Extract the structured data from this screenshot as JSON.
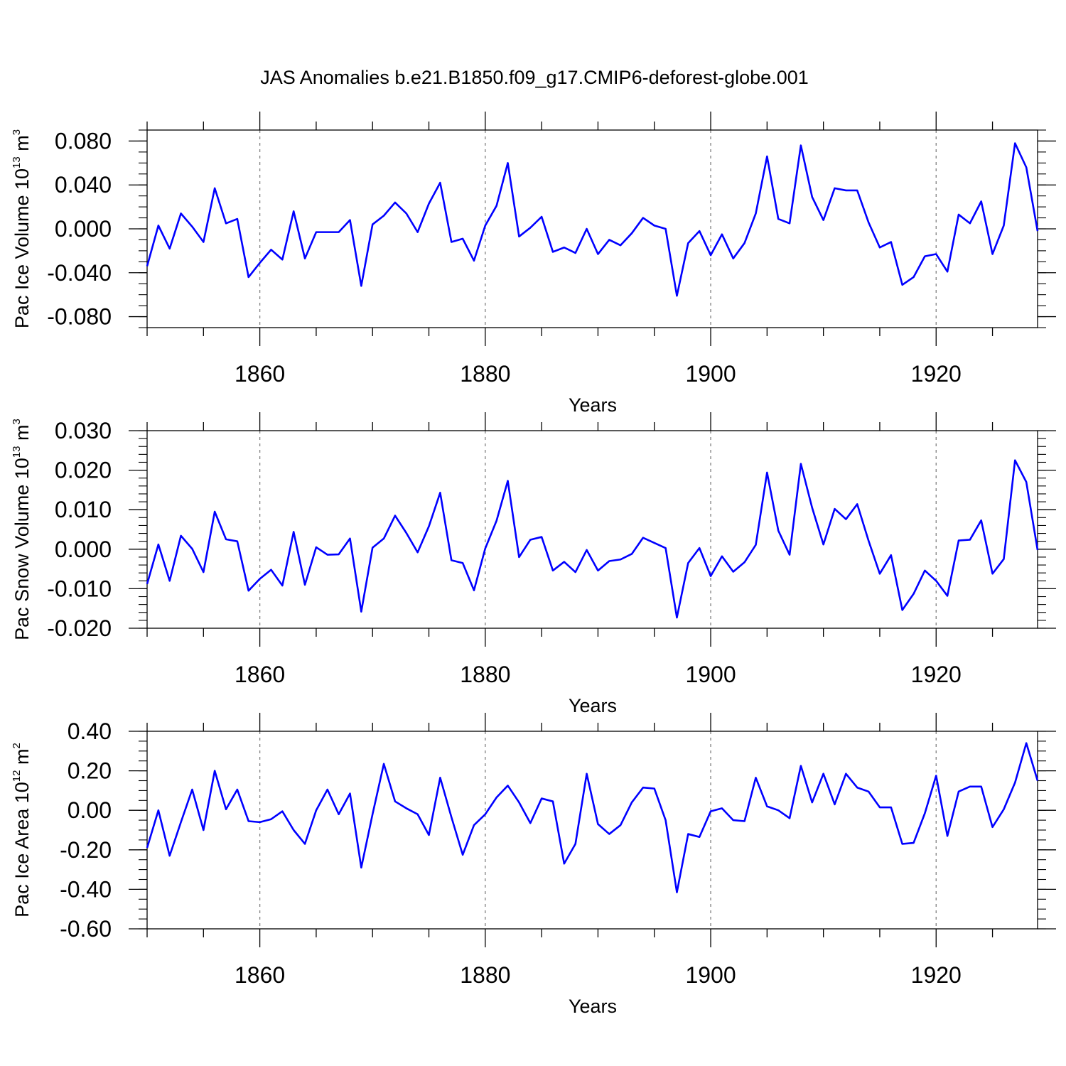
{
  "title": "JAS Anomalies b.e21.B1850.f09_g17.CMIP6-deforest-globe.001",
  "colors": {
    "line": "#0000ff",
    "axis": "#000000",
    "grid": "#808080"
  },
  "chart_data": [
    {
      "type": "line",
      "ylabel": "Pac Ice Volume 10",
      "ylabel_exp": "13",
      "ylabel_unit": " m",
      "ylabel_unit_exp": "3",
      "xlabel": "Years",
      "xlim": [
        1850,
        1929
      ],
      "ylim": [
        -0.09,
        0.09
      ],
      "yticks": [
        -0.08,
        -0.04,
        0.0,
        0.04,
        0.08
      ],
      "ytick_labels": [
        "-0.080",
        "-0.040",
        "0.000",
        "0.040",
        "0.080"
      ],
      "yminor_step": 0.01,
      "xticks": [
        1860,
        1880,
        1900,
        1920
      ],
      "xtick_labels": [
        "1860",
        "1880",
        "1900",
        "1920"
      ],
      "x_start": 1850,
      "values": [
        -0.034,
        0.003,
        -0.018,
        0.014,
        0.002,
        -0.012,
        0.037,
        0.005,
        0.009,
        -0.044,
        -0.031,
        -0.019,
        -0.028,
        0.016,
        -0.027,
        -0.003,
        -0.003,
        -0.003,
        0.008,
        -0.052,
        0.004,
        0.012,
        0.024,
        0.014,
        -0.003,
        0.023,
        0.042,
        -0.012,
        -0.009,
        -0.029,
        0.003,
        0.021,
        0.06,
        -0.007,
        0.001,
        0.011,
        -0.021,
        -0.017,
        -0.022,
        0.0,
        -0.023,
        -0.01,
        -0.015,
        -0.004,
        0.01,
        0.003,
        0.0,
        -0.061,
        -0.013,
        -0.002,
        -0.024,
        -0.005,
        -0.027,
        -0.013,
        0.014,
        0.066,
        0.009,
        0.005,
        0.076,
        0.029,
        0.008,
        0.037,
        0.035,
        0.035,
        0.006,
        -0.017,
        -0.012,
        -0.051,
        -0.044,
        -0.025,
        -0.023,
        -0.039,
        0.013,
        0.005,
        0.025,
        -0.023,
        0.003,
        0.078,
        0.056,
        -0.002
      ]
    },
    {
      "type": "line",
      "ylabel": "Pac Snow Volume 10",
      "ylabel_exp": "13",
      "ylabel_unit": " m",
      "ylabel_unit_exp": "3",
      "xlabel": "Years",
      "xlim": [
        1850,
        1929
      ],
      "ylim": [
        -0.02,
        0.03
      ],
      "yticks": [
        -0.02,
        -0.01,
        0.0,
        0.01,
        0.02,
        0.03
      ],
      "ytick_labels": [
        "-0.020",
        "-0.010",
        "0.000",
        "0.010",
        "0.020",
        "0.030"
      ],
      "yminor_step": 0.002,
      "xticks": [
        1860,
        1880,
        1900,
        1920
      ],
      "xtick_labels": [
        "1860",
        "1880",
        "1900",
        "1920"
      ],
      "x_start": 1850,
      "values": [
        -0.0088,
        0.0012,
        -0.008,
        0.0034,
        0.0001,
        -0.0058,
        0.0095,
        0.0025,
        0.002,
        -0.0105,
        -0.0075,
        -0.0052,
        -0.0092,
        0.0044,
        -0.009,
        0.0005,
        -0.0014,
        -0.0013,
        0.0027,
        -0.0158,
        0.0004,
        0.0027,
        0.0085,
        0.0041,
        -0.0008,
        0.0058,
        0.0143,
        -0.0028,
        -0.0035,
        -0.0104,
        0.0002,
        0.0072,
        0.0173,
        -0.002,
        0.0024,
        0.0031,
        -0.0054,
        -0.0032,
        -0.0058,
        -0.0002,
        -0.0054,
        -0.003,
        -0.0026,
        -0.0012,
        0.0029,
        0.0016,
        0.0003,
        -0.0173,
        -0.0035,
        0.0003,
        -0.0068,
        -0.0018,
        -0.0057,
        -0.0033,
        0.0011,
        0.0194,
        0.0047,
        -0.0014,
        0.0216,
        0.0105,
        0.0012,
        0.0102,
        0.0076,
        0.0114,
        0.0022,
        -0.0062,
        -0.0015,
        -0.0154,
        -0.0113,
        -0.0054,
        -0.008,
        -0.0118,
        0.0022,
        0.0024,
        0.0073,
        -0.0062,
        -0.0025,
        0.0225,
        0.017,
        -0.0002
      ]
    },
    {
      "type": "line",
      "ylabel": "Pac Ice Area 10",
      "ylabel_exp": "12",
      "ylabel_unit": " m",
      "ylabel_unit_exp": "2",
      "xlabel": "Years",
      "xlim": [
        1850,
        1929
      ],
      "ylim": [
        -0.6,
        0.4
      ],
      "yticks": [
        -0.6,
        -0.4,
        -0.2,
        0.0,
        0.2,
        0.4
      ],
      "ytick_labels": [
        "-0.60",
        "-0.40",
        "-0.20",
        "0.00",
        "0.20",
        "0.40"
      ],
      "yminor_step": 0.05,
      "xticks": [
        1860,
        1880,
        1900,
        1920
      ],
      "xtick_labels": [
        "1860",
        "1880",
        "1900",
        "1920"
      ],
      "x_start": 1850,
      "values": [
        -0.19,
        0.0,
        -0.23,
        -0.06,
        0.105,
        -0.1,
        0.2,
        0.005,
        0.105,
        -0.055,
        -0.06,
        -0.045,
        -0.005,
        -0.1,
        -0.17,
        0.0,
        0.105,
        -0.02,
        0.085,
        -0.29,
        -0.02,
        0.235,
        0.045,
        0.01,
        -0.02,
        -0.125,
        0.165,
        -0.035,
        -0.225,
        -0.075,
        -0.02,
        0.065,
        0.125,
        0.04,
        -0.065,
        0.06,
        0.045,
        -0.27,
        -0.17,
        0.185,
        -0.07,
        -0.12,
        -0.075,
        0.04,
        0.115,
        0.11,
        -0.05,
        -0.415,
        -0.12,
        -0.135,
        -0.005,
        0.01,
        -0.05,
        -0.055,
        0.165,
        0.02,
        0.0,
        -0.04,
        0.225,
        0.04,
        0.185,
        0.03,
        0.185,
        0.115,
        0.095,
        0.015,
        0.015,
        -0.17,
        -0.165,
        -0.015,
        0.175,
        -0.13,
        0.095,
        0.12,
        0.12,
        -0.085,
        0.005,
        0.14,
        0.34,
        0.15
      ]
    }
  ]
}
